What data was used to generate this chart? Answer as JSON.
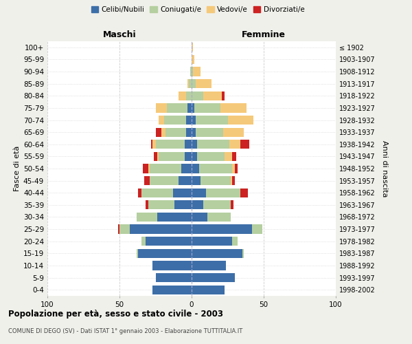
{
  "age_groups": [
    "0-4",
    "5-9",
    "10-14",
    "15-19",
    "20-24",
    "25-29",
    "30-34",
    "35-39",
    "40-44",
    "45-49",
    "50-54",
    "55-59",
    "60-64",
    "65-69",
    "70-74",
    "75-79",
    "80-84",
    "85-89",
    "90-94",
    "95-99",
    "100+"
  ],
  "birth_years": [
    "1998-2002",
    "1993-1997",
    "1988-1992",
    "1983-1987",
    "1978-1982",
    "1973-1977",
    "1968-1972",
    "1963-1967",
    "1958-1962",
    "1953-1957",
    "1948-1952",
    "1943-1947",
    "1938-1942",
    "1933-1937",
    "1928-1932",
    "1923-1927",
    "1918-1922",
    "1913-1917",
    "1908-1912",
    "1903-1907",
    "≤ 1902"
  ],
  "males": {
    "celibi": [
      27,
      25,
      27,
      37,
      32,
      43,
      24,
      12,
      13,
      9,
      7,
      5,
      5,
      4,
      4,
      3,
      0,
      0,
      0,
      0,
      0
    ],
    "coniugati": [
      0,
      0,
      0,
      1,
      3,
      7,
      14,
      18,
      22,
      20,
      22,
      18,
      20,
      14,
      15,
      14,
      4,
      2,
      1,
      0,
      0
    ],
    "vedovi": [
      0,
      0,
      0,
      0,
      0,
      0,
      0,
      0,
      0,
      0,
      1,
      1,
      2,
      3,
      4,
      8,
      5,
      1,
      0,
      0,
      0
    ],
    "divorziati": [
      0,
      0,
      0,
      0,
      0,
      1,
      0,
      2,
      2,
      4,
      4,
      2,
      1,
      4,
      0,
      0,
      0,
      0,
      0,
      0,
      0
    ]
  },
  "females": {
    "nubili": [
      23,
      30,
      24,
      35,
      28,
      42,
      11,
      8,
      10,
      6,
      5,
      4,
      4,
      3,
      3,
      2,
      0,
      0,
      0,
      0,
      0
    ],
    "coniugate": [
      0,
      0,
      0,
      1,
      4,
      7,
      16,
      19,
      24,
      21,
      23,
      19,
      22,
      19,
      22,
      18,
      8,
      3,
      1,
      0,
      0
    ],
    "vedove": [
      0,
      0,
      0,
      0,
      0,
      0,
      0,
      0,
      0,
      1,
      2,
      5,
      8,
      14,
      18,
      18,
      13,
      11,
      5,
      2,
      1
    ],
    "divorziate": [
      0,
      0,
      0,
      0,
      0,
      0,
      0,
      2,
      5,
      2,
      2,
      3,
      6,
      0,
      0,
      0,
      2,
      0,
      0,
      0,
      0
    ]
  },
  "colors": {
    "celibi_nubili": "#3d6ea8",
    "coniugati": "#b5cfa0",
    "vedovi": "#f5c97a",
    "divorziati": "#cc2222"
  },
  "xlim": 100,
  "title": "Popolazione per età, sesso e stato civile - 2003",
  "subtitle": "COMUNE DI DEGO (SV) - Dati ISTAT 1° gennaio 2003 - Elaborazione TUTTITALIA.IT",
  "xlabel_left": "Maschi",
  "xlabel_right": "Femmine",
  "ylabel_left": "Fasce di età",
  "ylabel_right": "Anni di nascita",
  "legend_labels": [
    "Celibi/Nubili",
    "Coniugati/e",
    "Vedovi/e",
    "Divorziati/e"
  ],
  "bg_color": "#f0f0eb",
  "bar_bg_color": "#ffffff"
}
